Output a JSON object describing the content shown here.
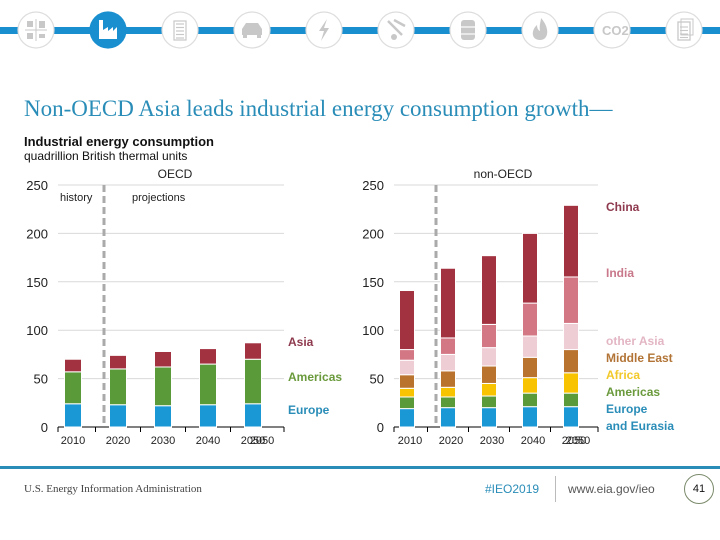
{
  "nav": {
    "icons": [
      {
        "name": "all-sectors-icon",
        "active": false
      },
      {
        "name": "industrial-icon",
        "active": true
      },
      {
        "name": "buildings-icon",
        "active": false
      },
      {
        "name": "transportation-icon",
        "active": false
      },
      {
        "name": "electricity-icon",
        "active": false
      },
      {
        "name": "petroleum-icon",
        "active": false
      },
      {
        "name": "oil-barrel-icon",
        "active": false
      },
      {
        "name": "natural-gas-icon",
        "active": false
      },
      {
        "name": "co2-icon",
        "active": false
      },
      {
        "name": "document-icon",
        "active": false
      }
    ],
    "accent": "#1a8fd0",
    "co2_label": "CO2"
  },
  "slide_title": "Non-OECD Asia leads industrial energy consumption growth—",
  "footer": {
    "org": "U.S. Energy Information Administration",
    "tag": "#IEO2019",
    "url": "www.eia.gov/ieo",
    "page": "41"
  },
  "chart_data": {
    "type": "bar",
    "stacked": true,
    "title": "Industrial energy consumption",
    "subtitle": "quadrillion British thermal units",
    "ylim": [
      0,
      250
    ],
    "yticks": [
      "0",
      "50",
      "100",
      "150",
      "200",
      "250"
    ],
    "grid": true,
    "annotations": {
      "history": "history",
      "projections": "projections"
    },
    "panels": [
      {
        "title": "OECD",
        "categories": [
          "2010",
          "2020",
          "2030",
          "2040",
          "2050"
        ],
        "xtick_extra": "",
        "series": [
          {
            "name": "Europe",
            "color": "#1a98d5",
            "values": [
              24,
              23,
              22,
              23,
              24
            ]
          },
          {
            "name": "Americas",
            "color": "#5a9a38",
            "values": [
              33,
              37,
              40,
              42,
              46
            ]
          },
          {
            "name": "Asia",
            "color": "#a2323f",
            "values": [
              13,
              14,
              16,
              16,
              17
            ]
          }
        ],
        "legend": [
          {
            "label": "Asia",
            "color": "#8e3a4e"
          },
          {
            "label": "Americas",
            "color": "#6a9a3c"
          },
          {
            "label": "Europe",
            "color": "#2a8db8"
          }
        ]
      },
      {
        "title": "non-OECD",
        "categories": [
          "2010",
          "2020",
          "2030",
          "2040",
          "2050"
        ],
        "series": [
          {
            "name": "Europe and Eurasia",
            "color": "#1a98d5",
            "values": [
              19,
              20,
              20,
              21,
              21
            ]
          },
          {
            "name": "Americas",
            "color": "#5a9a38",
            "values": [
              12,
              11,
              12,
              14,
              14
            ]
          },
          {
            "name": "Africa",
            "color": "#f8c300",
            "values": [
              9,
              10,
              13,
              16,
              21
            ]
          },
          {
            "name": "Middle East",
            "color": "#b9732f",
            "values": [
              14,
              17,
              18,
              21,
              24
            ]
          },
          {
            "name": "other Asia",
            "color": "#efcdd5",
            "values": [
              15,
              17,
              19,
              22,
              27
            ]
          },
          {
            "name": "India",
            "color": "#d47785",
            "values": [
              11,
              17,
              24,
              34,
              48
            ]
          },
          {
            "name": "China",
            "color": "#a2323f",
            "values": [
              61,
              72,
              71,
              72,
              74
            ]
          }
        ],
        "legend_top": [
          {
            "label": "China",
            "color": "#8e3a4e"
          },
          {
            "label": "India",
            "color": "#c8788a"
          }
        ],
        "legend_bottom": [
          {
            "label": "other Asia",
            "color": "#e3b6c4"
          },
          {
            "label": "Middle East",
            "color": "#b27436"
          },
          {
            "label": "Africa",
            "color": "#f2c92a"
          },
          {
            "label": "Americas",
            "color": "#6a9a3c"
          },
          {
            "label": "Europe",
            "color": "#2a8db8"
          },
          {
            "label": "and Eurasia",
            "color": "#2a8db8"
          }
        ]
      }
    ]
  }
}
